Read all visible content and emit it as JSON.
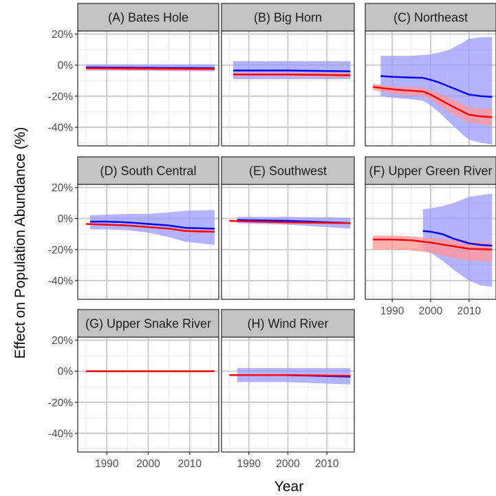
{
  "chart_data": {
    "type": "line",
    "layout": "faceted 3x3 grid (8 panels), shared axes",
    "xlabel": "Year",
    "ylabel": "Effect on Population Abundance (%)",
    "xlim": [
      1983,
      2017
    ],
    "ylim": [
      -52,
      22
    ],
    "x_ticks": [
      1990,
      2000,
      2010
    ],
    "x_tick_labels": [
      "1990",
      "2000",
      "2010"
    ],
    "y_ticks": [
      20,
      0,
      -20,
      -40
    ],
    "y_tick_labels": [
      "20%",
      "0%",
      "-20%",
      "-40%"
    ],
    "grid": true,
    "colors": {
      "blue_series": "#0000ff",
      "red_series": "#ff0000",
      "blue_band": "#9999ff",
      "red_band": "#ff9999",
      "strip_fill": "#c3c3c3",
      "grid": "#cccccc"
    },
    "panels": [
      {
        "title": "(A) Bates Hole",
        "series": [
          {
            "color": "blue",
            "x": [
              1985,
              2016
            ],
            "y": [
              -1.5,
              -2
            ],
            "lower": [
              -3.5,
              -4
            ],
            "upper": [
              0.5,
              0.5
            ]
          },
          {
            "color": "red",
            "x": [
              1985,
              2016
            ],
            "y": [
              -2,
              -2.5
            ],
            "lower": [
              -3,
              -3.5
            ],
            "upper": [
              -1,
              -1.5
            ]
          }
        ]
      },
      {
        "title": "(B) Big Horn",
        "series": [
          {
            "color": "blue",
            "x": [
              1986,
              2000,
              2016
            ],
            "y": [
              -3.5,
              -3.5,
              -4
            ],
            "lower": [
              -9,
              -9,
              -9
            ],
            "upper": [
              2.5,
              2.5,
              2.5
            ]
          },
          {
            "color": "red",
            "x": [
              1986,
              2000,
              2016
            ],
            "y": [
              -6,
              -6,
              -6.5
            ],
            "lower": [
              -7,
              -7,
              -8
            ],
            "upper": [
              -5,
              -5,
              -5
            ]
          }
        ]
      },
      {
        "title": "(C) Northeast",
        "series": [
          {
            "color": "blue",
            "x": [
              1987,
              1990,
              1995,
              1998,
              2000,
              2002,
              2005,
              2008,
              2010,
              2013,
              2016
            ],
            "y": [
              -7,
              -7.5,
              -8,
              -8.2,
              -9.5,
              -11,
              -14,
              -17,
              -19,
              -20,
              -20.5
            ],
            "lower": [
              -20,
              -21,
              -22,
              -23,
              -26,
              -30,
              -37,
              -44,
              -48,
              -50,
              -51
            ],
            "upper": [
              6,
              6,
              6,
              6.5,
              7,
              8,
              10,
              14,
              17,
              18,
              18
            ]
          },
          {
            "color": "red",
            "x": [
              1985,
              1988,
              1992,
              1995,
              1998,
              2000,
              2003,
              2006,
              2010,
              2013,
              2016
            ],
            "y": [
              -14,
              -15,
              -16,
              -16.5,
              -17,
              -19,
              -23,
              -27,
              -32,
              -33,
              -33.5
            ],
            "lower": [
              -16,
              -17.5,
              -19,
              -19.5,
              -20,
              -22,
              -27,
              -32,
              -37,
              -38,
              -39
            ],
            "upper": [
              -12,
              -13,
              -14,
              -14,
              -14.5,
              -16,
              -19,
              -22,
              -27,
              -28,
              -28
            ]
          }
        ]
      },
      {
        "title": "(D) South Central",
        "series": [
          {
            "color": "blue",
            "x": [
              1986,
              1990,
              1995,
              2000,
              2005,
              2009,
              2016
            ],
            "y": [
              -2,
              -2,
              -2.5,
              -3.5,
              -4.5,
              -6,
              -6.5
            ],
            "lower": [
              -7,
              -7,
              -7.5,
              -9,
              -12,
              -15,
              -17
            ],
            "upper": [
              2,
              2.5,
              3,
              3,
              4,
              5,
              5.5
            ]
          },
          {
            "color": "red",
            "x": [
              1985,
              1990,
              1995,
              2000,
              2005,
              2009,
              2016
            ],
            "y": [
              -3.5,
              -4,
              -4.5,
              -5.5,
              -6.5,
              -8,
              -8.5
            ],
            "lower": [
              -4,
              -4.5,
              -5,
              -6,
              -7,
              -9,
              -9.5
            ],
            "upper": [
              -3,
              -3.5,
              -4,
              -5,
              -6,
              -7,
              -7.5
            ]
          }
        ]
      },
      {
        "title": "(E) Southwest",
        "series": [
          {
            "color": "blue",
            "x": [
              1987,
              2000,
              2016
            ],
            "y": [
              -1,
              -1.5,
              -3
            ],
            "lower": [
              -3,
              -4,
              -6.5
            ],
            "upper": [
              1,
              1,
              0.5
            ]
          },
          {
            "color": "red",
            "x": [
              1985,
              2000,
              2016
            ],
            "y": [
              -1.5,
              -2.5,
              -3
            ],
            "lower": [
              -2,
              -3,
              -3.5
            ],
            "upper": [
              -1,
              -2,
              -2.5
            ]
          }
        ]
      },
      {
        "title": "(F) Upper Green River",
        "series": [
          {
            "color": "blue",
            "x": [
              1998,
              2000,
              2003,
              2006,
              2010,
              2013,
              2016
            ],
            "y": [
              -8,
              -8.5,
              -10,
              -13,
              -16,
              -17,
              -17.5
            ],
            "lower": [
              -20,
              -22,
              -27,
              -33,
              -40,
              -43,
              -44
            ],
            "upper": [
              6,
              6.5,
              8,
              10,
              14,
              15,
              16
            ]
          },
          {
            "color": "red",
            "x": [
              1985,
              1990,
              1995,
              2000,
              2005,
              2010,
              2016
            ],
            "y": [
              -13.5,
              -13.5,
              -14,
              -15.5,
              -17.5,
              -19.5,
              -20
            ],
            "lower": [
              -20,
              -20,
              -20.5,
              -22,
              -25,
              -27,
              -28
            ],
            "upper": [
              -11,
              -11,
              -11.5,
              -12.5,
              -13.5,
              -15,
              -15.5
            ]
          }
        ]
      },
      {
        "title": "(G) Upper Snake River",
        "series": [
          {
            "color": "red",
            "x": [
              1985,
              2016
            ],
            "y": [
              0,
              0
            ]
          }
        ]
      },
      {
        "title": "(H) Wind River",
        "series": [
          {
            "color": "blue",
            "x": [
              1987,
              2000,
              2016
            ],
            "y": [
              -2.5,
              -2.5,
              -3.5
            ],
            "lower": [
              -7,
              -7,
              -8.5
            ],
            "upper": [
              2,
              2,
              2
            ]
          },
          {
            "color": "red",
            "x": [
              1985,
              2000,
              2016
            ],
            "y": [
              -2.5,
              -2.5,
              -3
            ],
            "lower": [
              -3,
              -3,
              -3.5
            ],
            "upper": [
              -2,
              -2,
              -2.5
            ]
          }
        ]
      }
    ]
  }
}
